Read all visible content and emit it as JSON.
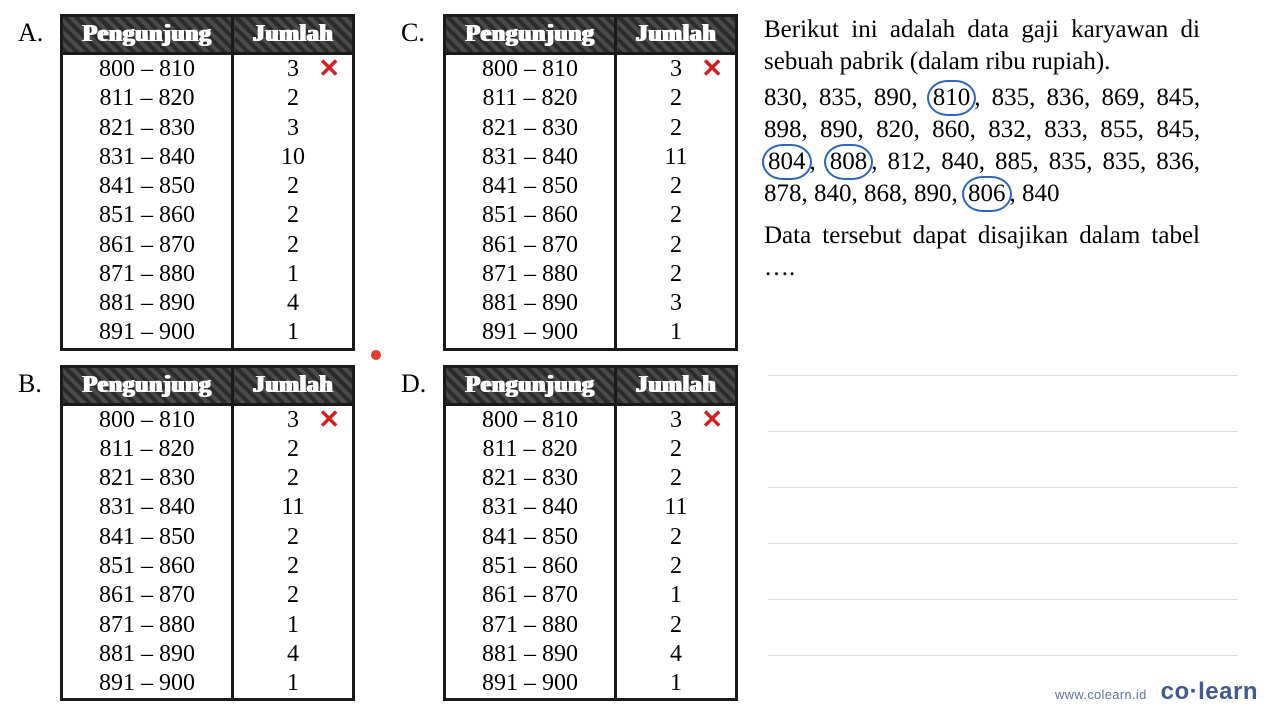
{
  "options": {
    "A": {
      "label": "A.",
      "columns": [
        "Pengunjung",
        "Jumlah"
      ],
      "rows": [
        {
          "range": "800 – 810",
          "count": "3",
          "x": true
        },
        {
          "range": "811 – 820",
          "count": "2"
        },
        {
          "range": "821 – 830",
          "count": "3"
        },
        {
          "range": "831 – 840",
          "count": "10"
        },
        {
          "range": "841 – 850",
          "count": "2"
        },
        {
          "range": "851 – 860",
          "count": "2"
        },
        {
          "range": "861 – 870",
          "count": "2"
        },
        {
          "range": "871 – 880",
          "count": "1"
        },
        {
          "range": "881 – 890",
          "count": "4"
        },
        {
          "range": "891 – 900",
          "count": "1"
        }
      ],
      "header_bg": "#333333",
      "header_fg": "#ffffff",
      "border_color": "#1a1a1a",
      "font_size": 24
    },
    "B": {
      "label": "B.",
      "columns": [
        "Pengunjung",
        "Jumlah"
      ],
      "rows": [
        {
          "range": "800 – 810",
          "count": "3",
          "x": true
        },
        {
          "range": "811 – 820",
          "count": "2"
        },
        {
          "range": "821 – 830",
          "count": "2"
        },
        {
          "range": "831 – 840",
          "count": "11"
        },
        {
          "range": "841 – 850",
          "count": "2"
        },
        {
          "range": "851 – 860",
          "count": "2"
        },
        {
          "range": "861 – 870",
          "count": "2"
        },
        {
          "range": "871 – 880",
          "count": "1"
        },
        {
          "range": "881 – 890",
          "count": "4"
        },
        {
          "range": "891 – 900",
          "count": "1"
        }
      ]
    },
    "C": {
      "label": "C.",
      "columns": [
        "Pengunjung",
        "Jumlah"
      ],
      "rows": [
        {
          "range": "800 – 810",
          "count": "3",
          "x": true
        },
        {
          "range": "811 – 820",
          "count": "2"
        },
        {
          "range": "821 – 830",
          "count": "2"
        },
        {
          "range": "831 – 840",
          "count": "11"
        },
        {
          "range": "841 – 850",
          "count": "2"
        },
        {
          "range": "851 – 860",
          "count": "2"
        },
        {
          "range": "861 – 870",
          "count": "2"
        },
        {
          "range": "871 – 880",
          "count": "2"
        },
        {
          "range": "881 – 890",
          "count": "3"
        },
        {
          "range": "891 – 900",
          "count": "1"
        }
      ]
    },
    "D": {
      "label": "D.",
      "columns": [
        "Pengunjung",
        "Jumlah"
      ],
      "rows": [
        {
          "range": "800 – 810",
          "count": "3",
          "x": true
        },
        {
          "range": "811 – 820",
          "count": "2"
        },
        {
          "range": "821 – 830",
          "count": "2"
        },
        {
          "range": "831 – 840",
          "count": "11"
        },
        {
          "range": "841 – 850",
          "count": "2"
        },
        {
          "range": "851 – 860",
          "count": "2"
        },
        {
          "range": "861 – 870",
          "count": "1"
        },
        {
          "range": "871 – 880",
          "count": "2"
        },
        {
          "range": "881 – 890",
          "count": "4"
        },
        {
          "range": "891 – 900",
          "count": "1"
        }
      ]
    }
  },
  "xmark_glyph": "✕",
  "xmark_color": "#d1201f",
  "question": {
    "para1": "Berikut ini adalah data gaji karyawan di sebuah pabrik (dalam ribu rupiah).",
    "numbers": [
      {
        "v": "830"
      },
      {
        "v": "835"
      },
      {
        "v": "890"
      },
      {
        "v": "810",
        "c": true
      },
      {
        "v": "835"
      },
      {
        "v": "836"
      },
      {
        "v": "869"
      },
      {
        "v": "845"
      },
      {
        "v": "898"
      },
      {
        "v": "890"
      },
      {
        "v": "820"
      },
      {
        "v": "860"
      },
      {
        "v": "832"
      },
      {
        "v": "833"
      },
      {
        "v": "855"
      },
      {
        "v": "845"
      },
      {
        "v": "804",
        "c": true
      },
      {
        "v": "808",
        "c": true
      },
      {
        "v": "812"
      },
      {
        "v": "840"
      },
      {
        "v": "885"
      },
      {
        "v": "835"
      },
      {
        "v": "835"
      },
      {
        "v": "836"
      },
      {
        "v": "878"
      },
      {
        "v": "840"
      },
      {
        "v": "868"
      },
      {
        "v": "890"
      },
      {
        "v": "806",
        "c": true
      },
      {
        "v": "840"
      }
    ],
    "circle_color": "#2f64c1",
    "para3": "Data tersebut dapat disajikan dalam tabel …."
  },
  "pointer_dot_color": "#e23c2f",
  "footer": {
    "site": "www.colearn.id",
    "brand_pre": "co",
    "brand_dot": "·",
    "brand_post": "learn",
    "color": "#445a8a"
  },
  "page_bg": "#ffffff",
  "text_color": "#000000",
  "font_family": "Times New Roman"
}
